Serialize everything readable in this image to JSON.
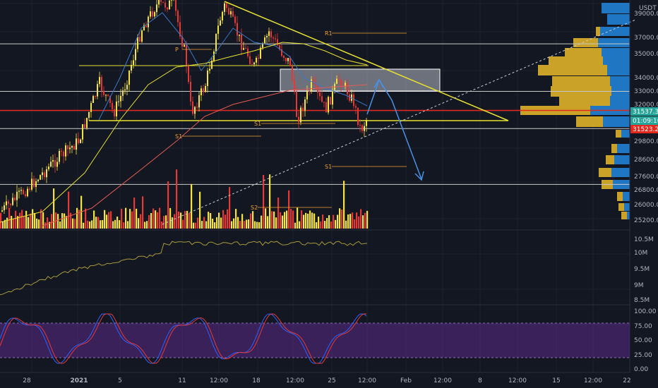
{
  "header": {
    "currency": "USDT"
  },
  "colors": {
    "background": "#131722",
    "grid": "#1e2230",
    "bull": "#f5e342",
    "bear": "#e53935",
    "resistance": "#e6e030",
    "support_red": "#e5281e",
    "white_line": "#c8c8c8",
    "pivot": "#f0a030",
    "projection": "#4a90e2",
    "vp_buy": "#c9a227",
    "vp_sell": "#1f77c4",
    "stoch_k": "#2962ff",
    "stoch_d": "#e53935",
    "stoch_band": "#5b2a86",
    "obv": "#a89a3a"
  },
  "chart_data": {
    "type": "candlestick",
    "symbol_quote": "USDT",
    "x_ticks": [
      "28",
      "2021",
      "5",
      "11",
      "12:00",
      "18",
      "12:00",
      "25",
      "12:00",
      "Feb",
      "12:00",
      "8",
      "12:00",
      "15",
      "12:00",
      "22"
    ],
    "price_axis": {
      "ticks": [
        "39000.00",
        "37000.00",
        "35000.00",
        "34000.00",
        "33000.00",
        "32000.00",
        "29800.00",
        "28600.00",
        "27600.00",
        "26800.00",
        "26000.00",
        "25200.00"
      ],
      "scale": "log"
    },
    "price_tags": [
      {
        "label": "31537.38",
        "color": "#26a69a"
      },
      {
        "label": "01:09:16",
        "color": "#26a69a"
      },
      {
        "label": "31523.22",
        "color": "#e5281e"
      }
    ],
    "pivot_labels": [
      "R1",
      "P",
      "S1",
      "S1",
      "S1",
      "S2"
    ],
    "horizontal_levels": [
      {
        "price": 36500,
        "color": "white"
      },
      {
        "price": 34850,
        "color": "yellow"
      },
      {
        "price": 33000,
        "color": "white"
      },
      {
        "price": 31700,
        "color": "red"
      },
      {
        "price": 30500,
        "color": "white"
      },
      {
        "price": 27100,
        "color": "white"
      }
    ],
    "obv_axis": {
      "ticks": [
        "10.5M",
        "10M",
        "9.5M",
        "9M",
        "8.5M"
      ]
    },
    "stoch_axis": {
      "ticks": [
        "100.00",
        "75.00",
        "50.00",
        "25.00",
        "0.00"
      ],
      "band": [
        20,
        80
      ]
    }
  }
}
